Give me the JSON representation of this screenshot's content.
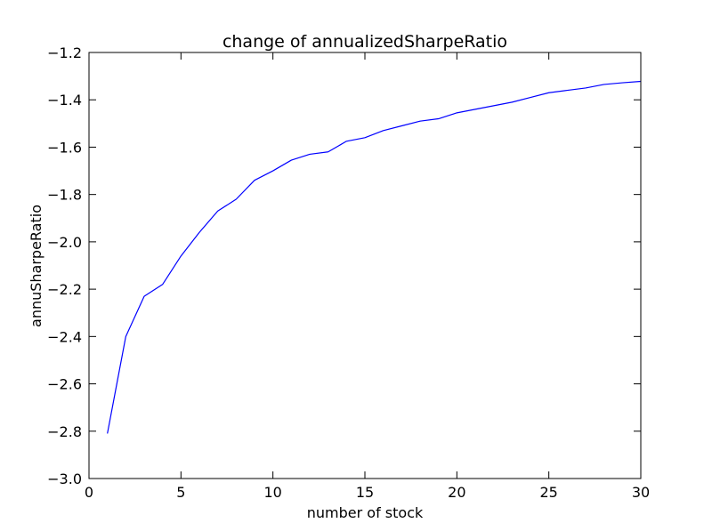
{
  "chart_data": {
    "type": "line",
    "title": "change of annualizedSharpeRatio",
    "xlabel": "number of stock",
    "ylabel": "annuSharpeRatio",
    "xlim": [
      0,
      30
    ],
    "ylim": [
      -3.0,
      -1.2
    ],
    "xticks": [
      0,
      5,
      10,
      15,
      20,
      25,
      30
    ],
    "xtick_labels": [
      "0",
      "5",
      "10",
      "15",
      "20",
      "25",
      "30"
    ],
    "yticks": [
      -3.0,
      -2.8,
      -2.6,
      -2.4,
      -2.2,
      -2.0,
      -1.8,
      -1.6,
      -1.4,
      -1.2
    ],
    "ytick_labels": [
      "−3.0",
      "−2.8",
      "−2.6",
      "−2.4",
      "−2.2",
      "−2.0",
      "−1.8",
      "−1.6",
      "−1.4",
      "−1.2"
    ],
    "grid": false,
    "series": [
      {
        "color": "#0000ff",
        "x": [
          1,
          2,
          3,
          4,
          5,
          6,
          7,
          8,
          9,
          10,
          11,
          12,
          13,
          14,
          15,
          16,
          17,
          18,
          19,
          20,
          21,
          22,
          23,
          24,
          25,
          26,
          27,
          28,
          29,
          30
        ],
        "y": [
          -2.81,
          -2.4,
          -2.23,
          -2.18,
          -2.06,
          -1.96,
          -1.87,
          -1.82,
          -1.74,
          -1.7,
          -1.655,
          -1.63,
          -1.62,
          -1.575,
          -1.56,
          -1.53,
          -1.51,
          -1.49,
          -1.48,
          -1.455,
          -1.44,
          -1.425,
          -1.41,
          -1.39,
          -1.37,
          -1.36,
          -1.35,
          -1.335,
          -1.328,
          -1.322
        ]
      }
    ]
  }
}
